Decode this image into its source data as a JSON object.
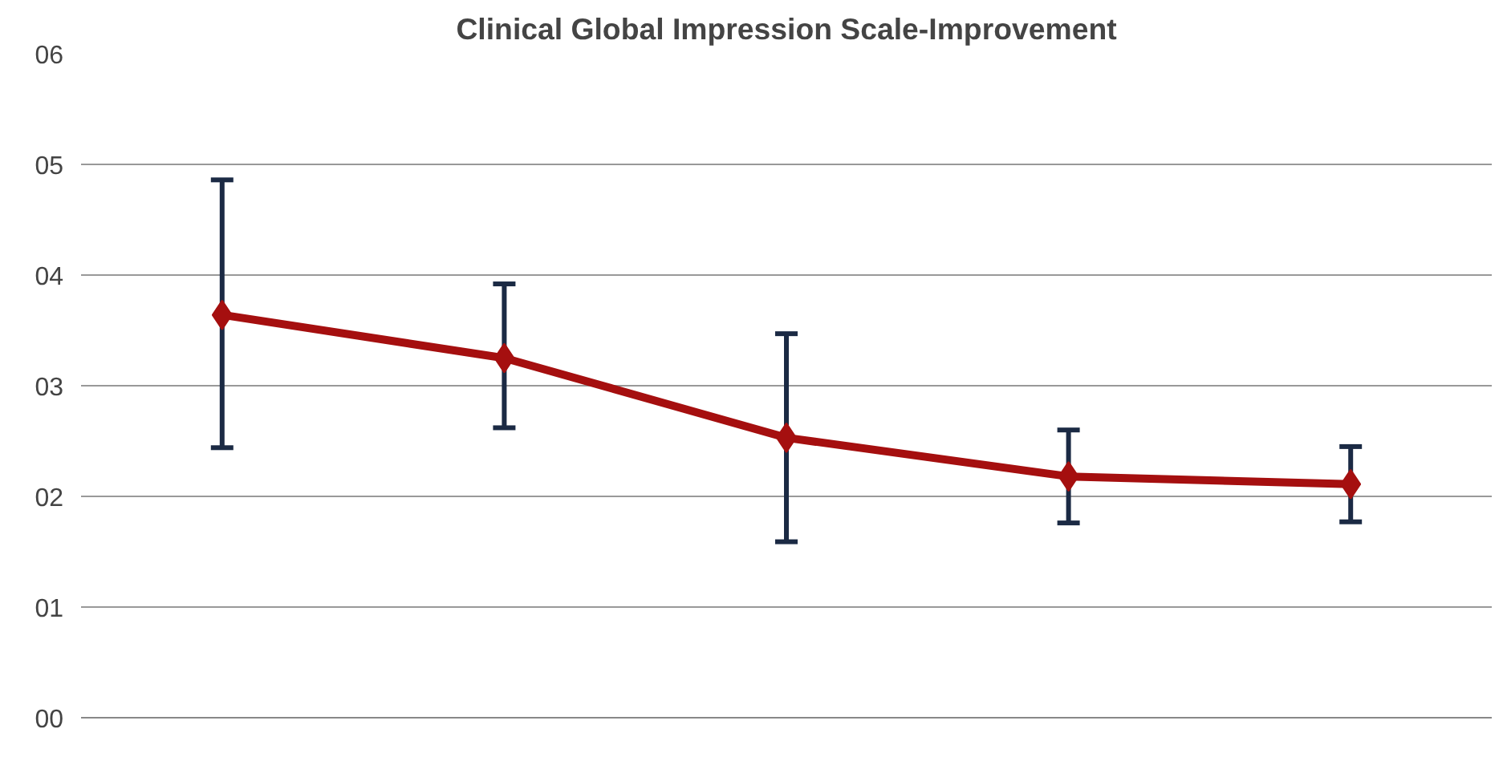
{
  "chart_data": {
    "type": "line",
    "title": "Clinical Global Impression Scale-Improvement",
    "categories": [
      null,
      null,
      null,
      null,
      null
    ],
    "series": [
      {
        "color": "#a50f0f",
        "values": [
          3.64,
          3.25,
          2.53,
          2.18,
          2.11
        ],
        "errors": [
          [
            2.44,
            4.86
          ],
          [
            2.62,
            3.92
          ],
          [
            1.59,
            3.47
          ],
          [
            1.76,
            2.6
          ],
          [
            1.77,
            2.45
          ]
        ]
      }
    ],
    "ylim": [
      0,
      6
    ],
    "yticks": [
      {
        "value": 0,
        "label": "00"
      },
      {
        "value": 1,
        "label": "01"
      },
      {
        "value": 2,
        "label": "02"
      },
      {
        "value": 3,
        "label": "03"
      },
      {
        "value": 4,
        "label": "04"
      },
      {
        "value": 5,
        "label": "05"
      },
      {
        "value": 6,
        "label": "06"
      }
    ],
    "grid": "y",
    "marker": "diamond",
    "line_style": "solid"
  }
}
